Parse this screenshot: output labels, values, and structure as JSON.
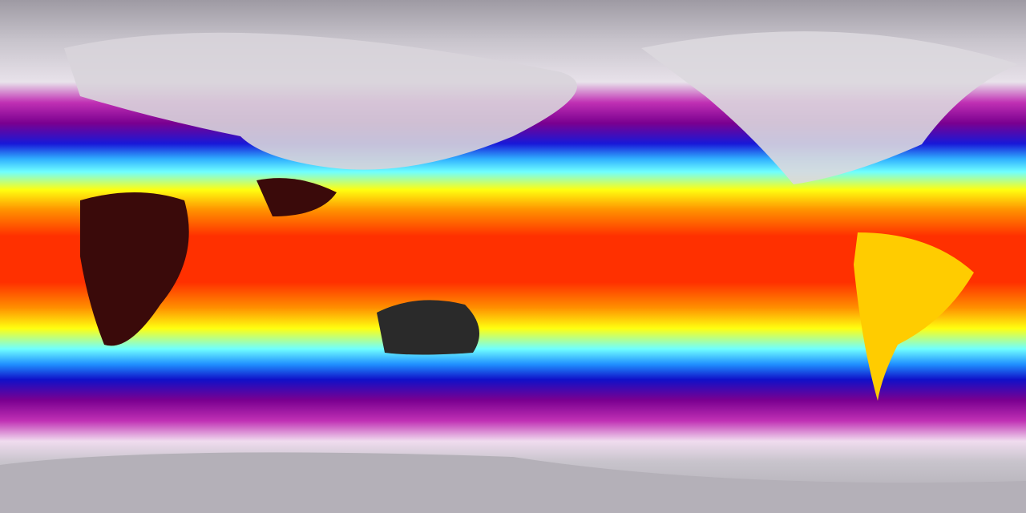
{
  "map": {
    "projection": "equirectangular",
    "colormap": [
      "#9e9aa3",
      "#f4eef4",
      "#c020b0",
      "#7a0090",
      "#1010d0",
      "#20a0ff",
      "#60ffff",
      "#ffff00",
      "#ff8c00",
      "#ff2000",
      "#3a0a0a",
      "#2a2a2a"
    ]
  }
}
